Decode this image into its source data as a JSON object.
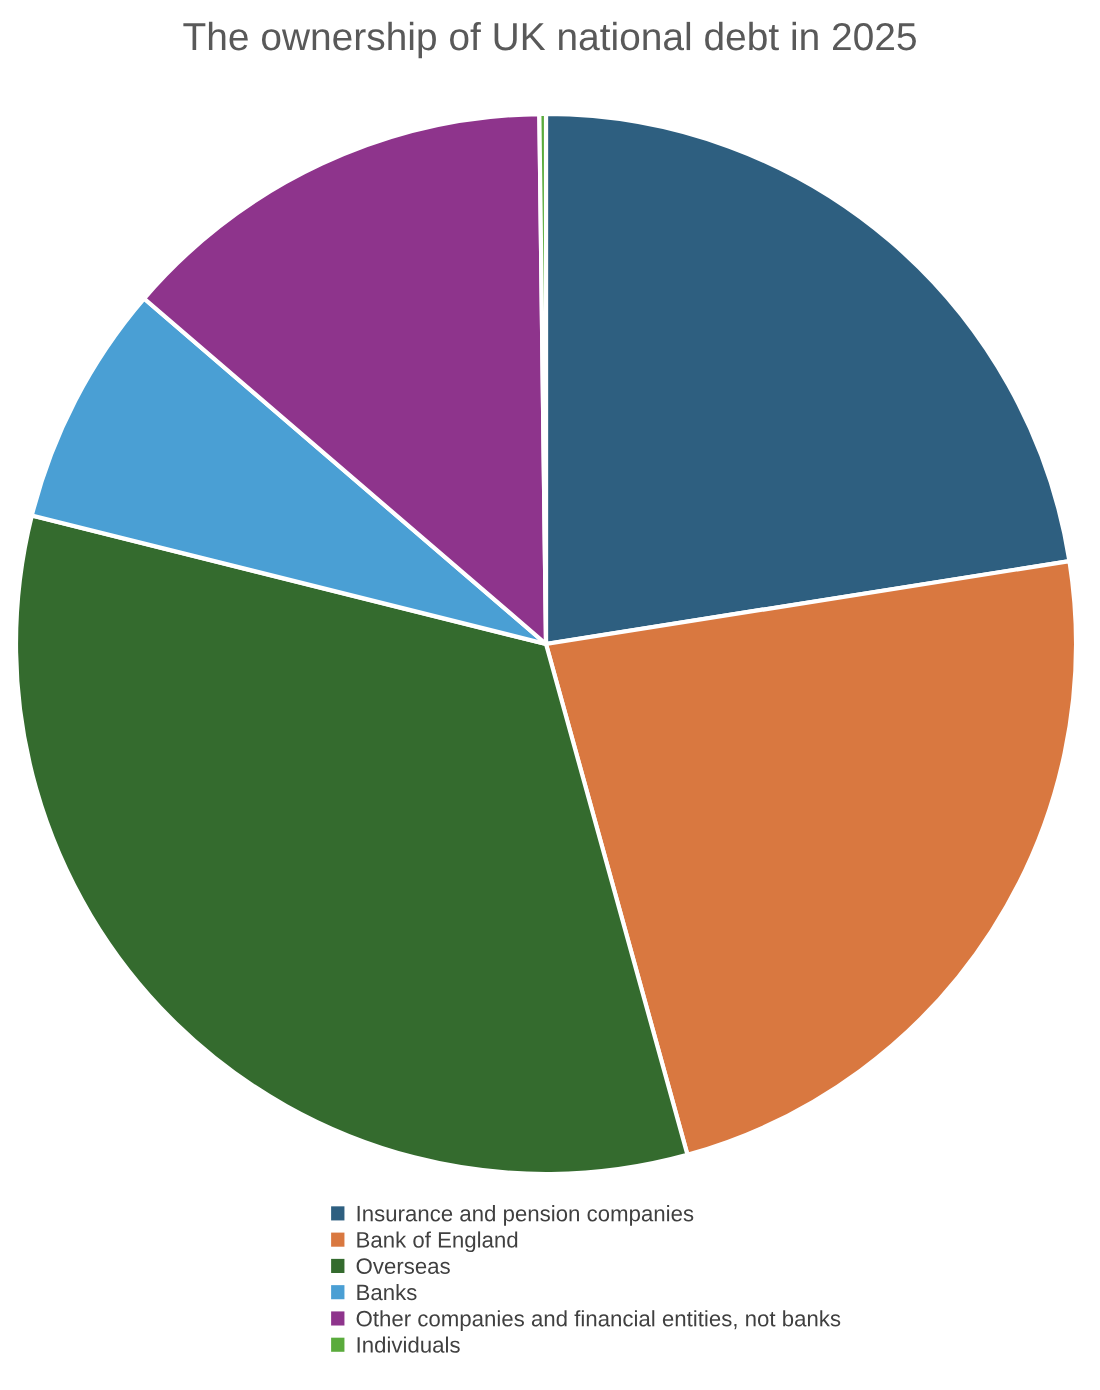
{
  "chart_data": {
    "type": "pie",
    "title": "The ownership of UK national debt in 2025",
    "categories": [
      "Insurance and pension companies",
      "Bank of England",
      "Overseas",
      "Banks",
      "Other companies and financial entities, not banks",
      "Individuals"
    ],
    "values": [
      22.5,
      23.2,
      33.2,
      7.4,
      13.5,
      0.2
    ],
    "colors": [
      "#2e5f80",
      "#d97840",
      "#346b2e",
      "#4a9fd4",
      "#8e348c",
      "#5aab3c"
    ],
    "legend": "bottom"
  }
}
